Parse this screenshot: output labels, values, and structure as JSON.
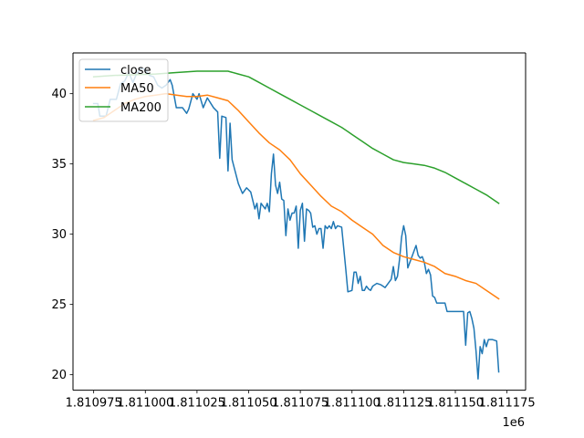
{
  "chart_data": {
    "type": "line",
    "title": "",
    "xlabel": "",
    "ylabel": "",
    "x_offset_label": "1e6",
    "xlim": [
      1810965,
      1811184
    ],
    "ylim": [
      18.9,
      42.9
    ],
    "xticks": [
      1810975,
      1811000,
      1811025,
      1811050,
      1811075,
      1811100,
      1811125,
      1811150,
      1811175
    ],
    "xtick_labels": [
      "1.810975",
      "1.811000",
      "1.811025",
      "1.811050",
      "1.811075",
      "1.811100",
      "1.811125",
      "1.811150",
      "1.811175"
    ],
    "yticks": [
      20,
      25,
      30,
      35,
      40
    ],
    "ytick_labels": [
      "20",
      "25",
      "30",
      "35",
      "40"
    ],
    "grid": false,
    "legend_position": "top-left",
    "series": [
      {
        "name": "close",
        "color": "#1f77b4",
        "points": [
          [
            1810975,
            39.3
          ],
          [
            1810977,
            39.3
          ],
          [
            1810978,
            38.4
          ],
          [
            1810981,
            38.4
          ],
          [
            1810983,
            39.6
          ],
          [
            1810986,
            39.6
          ],
          [
            1810988,
            40.7
          ],
          [
            1810990,
            40.9
          ],
          [
            1810992,
            41.5
          ],
          [
            1810994,
            40.8
          ],
          [
            1810996,
            41.5
          ],
          [
            1810998,
            41.8
          ],
          [
            1811000,
            41.7
          ],
          [
            1811002,
            41.3
          ],
          [
            1811004,
            41.2
          ],
          [
            1811006,
            40.6
          ],
          [
            1811008,
            40.4
          ],
          [
            1811010,
            40.6
          ],
          [
            1811012,
            41.0
          ],
          [
            1811013,
            40.6
          ],
          [
            1811015,
            39.0
          ],
          [
            1811018,
            39.0
          ],
          [
            1811020,
            38.6
          ],
          [
            1811021,
            38.9
          ],
          [
            1811023,
            40.0
          ],
          [
            1811025,
            39.6
          ],
          [
            1811026,
            40.0
          ],
          [
            1811028,
            39.0
          ],
          [
            1811030,
            39.7
          ],
          [
            1811033,
            39.0
          ],
          [
            1811035,
            38.7
          ],
          [
            1811036,
            35.4
          ],
          [
            1811037,
            38.4
          ],
          [
            1811039,
            38.3
          ],
          [
            1811040,
            34.5
          ],
          [
            1811041,
            37.9
          ],
          [
            1811042,
            35.3
          ],
          [
            1811045,
            33.6
          ],
          [
            1811047,
            32.9
          ],
          [
            1811049,
            33.3
          ],
          [
            1811051,
            33.0
          ],
          [
            1811053,
            31.8
          ],
          [
            1811054,
            32.2
          ],
          [
            1811055,
            31.1
          ],
          [
            1811056,
            32.2
          ],
          [
            1811058,
            31.8
          ],
          [
            1811059,
            32.2
          ],
          [
            1811060,
            31.6
          ],
          [
            1811061,
            34.3
          ],
          [
            1811062,
            35.7
          ],
          [
            1811063,
            33.5
          ],
          [
            1811064,
            32.9
          ],
          [
            1811065,
            33.7
          ],
          [
            1811066,
            32.5
          ],
          [
            1811067,
            32.4
          ],
          [
            1811068,
            29.9
          ],
          [
            1811069,
            31.8
          ],
          [
            1811070,
            31.0
          ],
          [
            1811071,
            31.5
          ],
          [
            1811072,
            31.5
          ],
          [
            1811073,
            32.0
          ],
          [
            1811074,
            29.0
          ],
          [
            1811075,
            31.7
          ],
          [
            1811076,
            32.2
          ],
          [
            1811077,
            29.5
          ],
          [
            1811078,
            31.8
          ],
          [
            1811079,
            31.7
          ],
          [
            1811080,
            31.5
          ],
          [
            1811081,
            30.5
          ],
          [
            1811082,
            30.6
          ],
          [
            1811083,
            30.0
          ],
          [
            1811084,
            30.4
          ],
          [
            1811085,
            30.4
          ],
          [
            1811086,
            29.0
          ],
          [
            1811087,
            30.6
          ],
          [
            1811088,
            30.4
          ],
          [
            1811089,
            30.6
          ],
          [
            1811090,
            30.4
          ],
          [
            1811091,
            30.9
          ],
          [
            1811092,
            30.4
          ],
          [
            1811093,
            30.6
          ],
          [
            1811095,
            30.5
          ],
          [
            1811097,
            27.5
          ],
          [
            1811098,
            25.9
          ],
          [
            1811100,
            26.0
          ],
          [
            1811101,
            27.3
          ],
          [
            1811102,
            27.3
          ],
          [
            1811103,
            26.5
          ],
          [
            1811104,
            27.0
          ],
          [
            1811105,
            26.0
          ],
          [
            1811106,
            26.0
          ],
          [
            1811107,
            26.3
          ],
          [
            1811108,
            26.1
          ],
          [
            1811109,
            26.0
          ],
          [
            1811110,
            26.3
          ],
          [
            1811112,
            26.5
          ],
          [
            1811114,
            26.4
          ],
          [
            1811116,
            26.2
          ],
          [
            1811118,
            26.6
          ],
          [
            1811119,
            26.8
          ],
          [
            1811120,
            27.7
          ],
          [
            1811121,
            26.7
          ],
          [
            1811122,
            27.0
          ],
          [
            1811123,
            28.2
          ],
          [
            1811124,
            29.8
          ],
          [
            1811125,
            30.6
          ],
          [
            1811126,
            29.9
          ],
          [
            1811127,
            27.6
          ],
          [
            1811128,
            28.0
          ],
          [
            1811130,
            28.8
          ],
          [
            1811131,
            29.2
          ],
          [
            1811132,
            28.5
          ],
          [
            1811133,
            28.3
          ],
          [
            1811134,
            28.4
          ],
          [
            1811135,
            28.0
          ],
          [
            1811136,
            27.2
          ],
          [
            1811137,
            27.5
          ],
          [
            1811138,
            27.1
          ],
          [
            1811139,
            25.6
          ],
          [
            1811140,
            25.5
          ],
          [
            1811141,
            25.1
          ],
          [
            1811143,
            25.1
          ],
          [
            1811145,
            25.1
          ],
          [
            1811146,
            24.5
          ],
          [
            1811150,
            24.5
          ],
          [
            1811154,
            24.5
          ],
          [
            1811155,
            22.1
          ],
          [
            1811156,
            24.4
          ],
          [
            1811157,
            24.5
          ],
          [
            1811158,
            24.0
          ],
          [
            1811159,
            23.3
          ],
          [
            1811160,
            21.7
          ],
          [
            1811161,
            19.7
          ],
          [
            1811162,
            22.0
          ],
          [
            1811163,
            21.5
          ],
          [
            1811164,
            22.5
          ],
          [
            1811165,
            22.0
          ],
          [
            1811166,
            22.5
          ],
          [
            1811168,
            22.5
          ],
          [
            1811170,
            22.4
          ],
          [
            1811171,
            20.2
          ]
        ]
      },
      {
        "name": "MA50",
        "color": "#ff7f0e",
        "points": [
          [
            1810975,
            38.1
          ],
          [
            1810980,
            38.3
          ],
          [
            1810985,
            38.8
          ],
          [
            1810990,
            39.3
          ],
          [
            1810995,
            39.6
          ],
          [
            1811000,
            39.8
          ],
          [
            1811005,
            39.9
          ],
          [
            1811010,
            40.0
          ],
          [
            1811015,
            39.9
          ],
          [
            1811020,
            39.8
          ],
          [
            1811025,
            39.8
          ],
          [
            1811030,
            39.9
          ],
          [
            1811035,
            39.7
          ],
          [
            1811040,
            39.5
          ],
          [
            1811045,
            38.8
          ],
          [
            1811050,
            38.0
          ],
          [
            1811055,
            37.2
          ],
          [
            1811060,
            36.5
          ],
          [
            1811065,
            36.0
          ],
          [
            1811070,
            35.3
          ],
          [
            1811075,
            34.3
          ],
          [
            1811080,
            33.5
          ],
          [
            1811085,
            32.7
          ],
          [
            1811090,
            32.0
          ],
          [
            1811095,
            31.6
          ],
          [
            1811100,
            31.0
          ],
          [
            1811105,
            30.5
          ],
          [
            1811110,
            30.0
          ],
          [
            1811115,
            29.2
          ],
          [
            1811120,
            28.7
          ],
          [
            1811125,
            28.4
          ],
          [
            1811130,
            28.2
          ],
          [
            1811135,
            28.0
          ],
          [
            1811140,
            27.7
          ],
          [
            1811145,
            27.2
          ],
          [
            1811150,
            27.0
          ],
          [
            1811155,
            26.7
          ],
          [
            1811160,
            26.5
          ],
          [
            1811165,
            26.0
          ],
          [
            1811171,
            25.4
          ]
        ]
      },
      {
        "name": "MA200",
        "color": "#2ca02c",
        "points": [
          [
            1810975,
            41.2
          ],
          [
            1810985,
            41.3
          ],
          [
            1810995,
            41.35
          ],
          [
            1811005,
            41.4
          ],
          [
            1811015,
            41.5
          ],
          [
            1811025,
            41.6
          ],
          [
            1811035,
            41.6
          ],
          [
            1811040,
            41.6
          ],
          [
            1811045,
            41.4
          ],
          [
            1811050,
            41.2
          ],
          [
            1811055,
            40.8
          ],
          [
            1811060,
            40.4
          ],
          [
            1811065,
            40.0
          ],
          [
            1811070,
            39.6
          ],
          [
            1811075,
            39.2
          ],
          [
            1811080,
            38.8
          ],
          [
            1811085,
            38.4
          ],
          [
            1811090,
            38.0
          ],
          [
            1811095,
            37.6
          ],
          [
            1811100,
            37.1
          ],
          [
            1811105,
            36.6
          ],
          [
            1811110,
            36.1
          ],
          [
            1811115,
            35.7
          ],
          [
            1811120,
            35.3
          ],
          [
            1811125,
            35.1
          ],
          [
            1811130,
            35.0
          ],
          [
            1811135,
            34.9
          ],
          [
            1811140,
            34.7
          ],
          [
            1811145,
            34.4
          ],
          [
            1811150,
            34.0
          ],
          [
            1811155,
            33.6
          ],
          [
            1811160,
            33.2
          ],
          [
            1811165,
            32.8
          ],
          [
            1811171,
            32.2
          ]
        ]
      }
    ]
  }
}
